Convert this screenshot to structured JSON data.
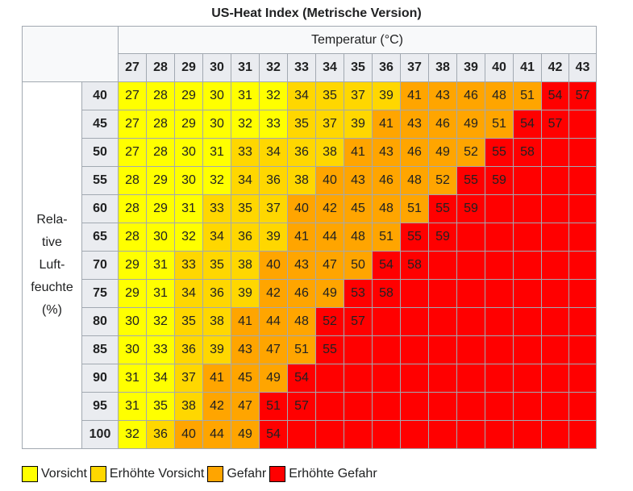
{
  "title": "US-Heat Index (Metrische Version)",
  "temperature_caption": "Temperatur (°C)",
  "humidity_caption": [
    "Rela-",
    "tive",
    "Luft-",
    "feuchte",
    "(%)"
  ],
  "temperatures": [
    "27",
    "28",
    "29",
    "30",
    "31",
    "32",
    "33",
    "34",
    "35",
    "36",
    "37",
    "38",
    "39",
    "40",
    "41",
    "42",
    "43"
  ],
  "colors": {
    "c1": "#ffff00",
    "c2": "#ffd700",
    "c3": "#ffa500",
    "c4": "#ff0000"
  },
  "rows": [
    {
      "humidity": "40",
      "values": [
        "27",
        "28",
        "29",
        "30",
        "31",
        "32",
        "34",
        "35",
        "37",
        "39",
        "41",
        "43",
        "46",
        "48",
        "51",
        "54",
        "57"
      ],
      "levels": [
        1,
        1,
        1,
        1,
        1,
        1,
        2,
        2,
        2,
        2,
        3,
        3,
        3,
        3,
        3,
        4,
        4
      ]
    },
    {
      "humidity": "45",
      "values": [
        "27",
        "28",
        "29",
        "30",
        "32",
        "33",
        "35",
        "37",
        "39",
        "41",
        "43",
        "46",
        "49",
        "51",
        "54",
        "57",
        ""
      ],
      "levels": [
        1,
        1,
        1,
        1,
        1,
        1,
        2,
        2,
        2,
        3,
        3,
        3,
        3,
        3,
        4,
        4,
        4
      ]
    },
    {
      "humidity": "50",
      "values": [
        "27",
        "28",
        "30",
        "31",
        "33",
        "34",
        "36",
        "38",
        "41",
        "43",
        "46",
        "49",
        "52",
        "55",
        "58",
        "",
        ""
      ],
      "levels": [
        1,
        1,
        1,
        1,
        2,
        2,
        2,
        2,
        3,
        3,
        3,
        3,
        3,
        4,
        4,
        4,
        4
      ]
    },
    {
      "humidity": "55",
      "values": [
        "28",
        "29",
        "30",
        "32",
        "34",
        "36",
        "38",
        "40",
        "43",
        "46",
        "48",
        "52",
        "55",
        "59",
        "",
        "",
        ""
      ],
      "levels": [
        1,
        1,
        1,
        1,
        2,
        2,
        2,
        3,
        3,
        3,
        3,
        3,
        4,
        4,
        4,
        4,
        4
      ]
    },
    {
      "humidity": "60",
      "values": [
        "28",
        "29",
        "31",
        "33",
        "35",
        "37",
        "40",
        "42",
        "45",
        "48",
        "51",
        "55",
        "59",
        "",
        "",
        "",
        ""
      ],
      "levels": [
        1,
        1,
        1,
        2,
        2,
        2,
        3,
        3,
        3,
        3,
        3,
        4,
        4,
        4,
        4,
        4,
        4
      ]
    },
    {
      "humidity": "65",
      "values": [
        "28",
        "30",
        "32",
        "34",
        "36",
        "39",
        "41",
        "44",
        "48",
        "51",
        "55",
        "59",
        "",
        "",
        "",
        "",
        ""
      ],
      "levels": [
        1,
        1,
        1,
        2,
        2,
        2,
        3,
        3,
        3,
        3,
        4,
        4,
        4,
        4,
        4,
        4,
        4
      ]
    },
    {
      "humidity": "70",
      "values": [
        "29",
        "31",
        "33",
        "35",
        "38",
        "40",
        "43",
        "47",
        "50",
        "54",
        "58",
        "",
        "",
        "",
        "",
        "",
        ""
      ],
      "levels": [
        1,
        1,
        2,
        2,
        2,
        3,
        3,
        3,
        3,
        4,
        4,
        4,
        4,
        4,
        4,
        4,
        4
      ]
    },
    {
      "humidity": "75",
      "values": [
        "29",
        "31",
        "34",
        "36",
        "39",
        "42",
        "46",
        "49",
        "53",
        "58",
        "",
        "",
        "",
        "",
        "",
        "",
        ""
      ],
      "levels": [
        1,
        1,
        2,
        2,
        2,
        3,
        3,
        3,
        4,
        4,
        4,
        4,
        4,
        4,
        4,
        4,
        4
      ]
    },
    {
      "humidity": "80",
      "values": [
        "30",
        "32",
        "35",
        "38",
        "41",
        "44",
        "48",
        "52",
        "57",
        "",
        "",
        "",
        "",
        "",
        "",
        "",
        ""
      ],
      "levels": [
        1,
        1,
        2,
        2,
        3,
        3,
        3,
        4,
        4,
        4,
        4,
        4,
        4,
        4,
        4,
        4,
        4
      ]
    },
    {
      "humidity": "85",
      "values": [
        "30",
        "33",
        "36",
        "39",
        "43",
        "47",
        "51",
        "55",
        "",
        "",
        "",
        "",
        "",
        "",
        "",
        "",
        ""
      ],
      "levels": [
        1,
        1,
        2,
        2,
        3,
        3,
        3,
        4,
        4,
        4,
        4,
        4,
        4,
        4,
        4,
        4,
        4
      ]
    },
    {
      "humidity": "90",
      "values": [
        "31",
        "34",
        "37",
        "41",
        "45",
        "49",
        "54",
        "",
        "",
        "",
        "",
        "",
        "",
        "",
        "",
        "",
        ""
      ],
      "levels": [
        1,
        1,
        2,
        3,
        3,
        3,
        4,
        4,
        4,
        4,
        4,
        4,
        4,
        4,
        4,
        4,
        4
      ]
    },
    {
      "humidity": "95",
      "values": [
        "31",
        "35",
        "38",
        "42",
        "47",
        "51",
        "57",
        "",
        "",
        "",
        "",
        "",
        "",
        "",
        "",
        "",
        ""
      ],
      "levels": [
        1,
        1,
        2,
        3,
        3,
        4,
        4,
        4,
        4,
        4,
        4,
        4,
        4,
        4,
        4,
        4,
        4
      ]
    },
    {
      "humidity": "100",
      "values": [
        "32",
        "36",
        "40",
        "44",
        "49",
        "54",
        "",
        "",
        "",
        "",
        "",
        "",
        "",
        "",
        "",
        "",
        ""
      ],
      "levels": [
        1,
        2,
        3,
        3,
        3,
        4,
        4,
        4,
        4,
        4,
        4,
        4,
        4,
        4,
        4,
        4,
        4
      ]
    }
  ],
  "legend": [
    {
      "label": "Vorsicht",
      "color": "#ffff00"
    },
    {
      "label": "Erhöhte Vorsicht",
      "color": "#ffd700"
    },
    {
      "label": "Gefahr",
      "color": "#ffa500"
    },
    {
      "label": "Erhöhte Gefahr",
      "color": "#ff0000"
    }
  ]
}
